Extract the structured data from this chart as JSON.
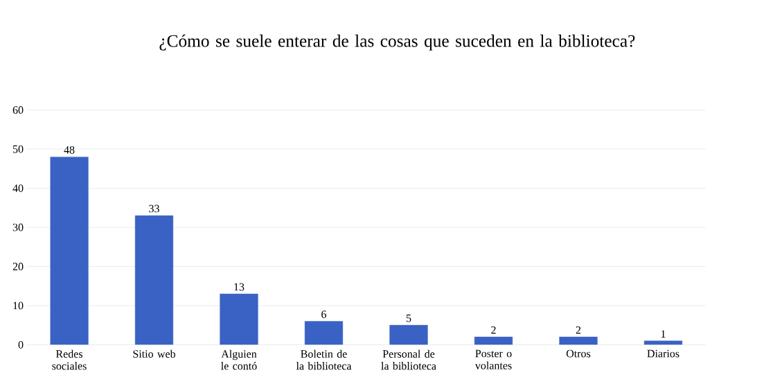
{
  "chart_data": {
    "type": "bar",
    "title": "¿Cómo se suele enterar de las cosas que suceden en la biblioteca?",
    "categories": [
      "Redes sociales",
      "Sitio web",
      "Alguien le contó",
      "Boletin de la biblioteca",
      "Personal de la biblioteca",
      "Poster o volantes",
      "Otros",
      "Diarios"
    ],
    "values": [
      48,
      33,
      13,
      6,
      5,
      2,
      2,
      1
    ],
    "color": "#3a62c4",
    "ylim": [
      0,
      60
    ],
    "yticks": [
      0,
      10,
      20,
      30,
      40,
      50,
      60
    ],
    "grid": "y",
    "data_labels": true
  }
}
